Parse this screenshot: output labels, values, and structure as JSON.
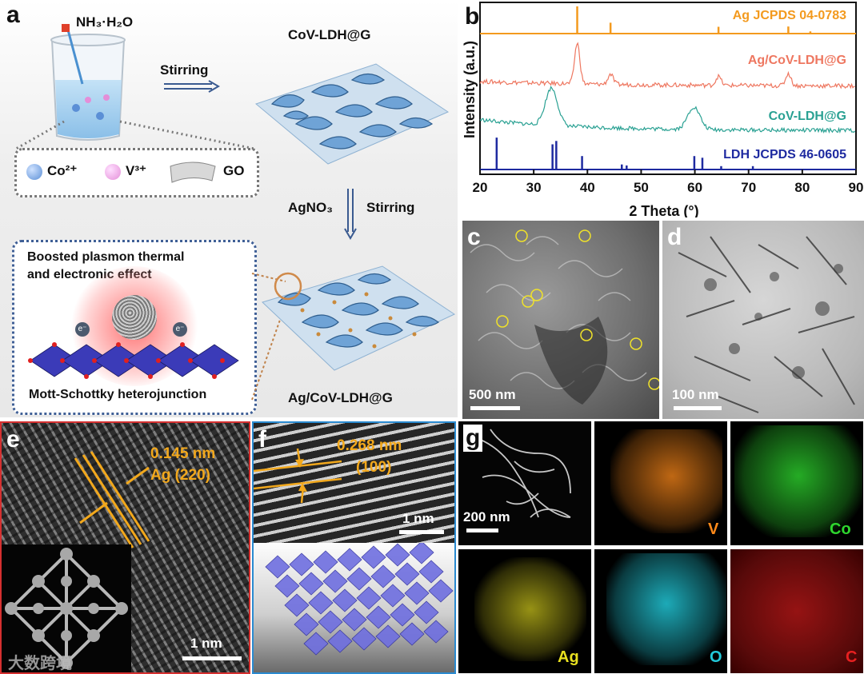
{
  "panel_a": {
    "label": "a",
    "reagent_top": "NH₃·H₂O",
    "product_top": "CoV-LDH@G",
    "step1": "Stirring",
    "reagent2": "AgNO₃",
    "step2": "Stirring",
    "legend": [
      {
        "name": "Co²⁺",
        "color": "#5b8fd6"
      },
      {
        "name": "V³⁺",
        "color": "#e48ed8"
      },
      {
        "name": "GO",
        "color": "#9a9a9a"
      }
    ],
    "inset_title_line1": "Boosted plasmon thermal",
    "inset_title_line2": "and electronic effect",
    "electron_label": "e⁻",
    "inset_footer": "Mott-Schottky heterojunction",
    "product_bottom": "Ag/CoV-LDH@G"
  },
  "panel_b": {
    "label": "b"
  },
  "chart_data": {
    "type": "line",
    "title": "",
    "xlabel": "2 Theta (°)",
    "ylabel": "Intensity (a.u.)",
    "xlim": [
      20,
      90
    ],
    "xticks": [
      20,
      30,
      40,
      50,
      60,
      70,
      80,
      90
    ],
    "yticks": [],
    "grid": false,
    "series": [
      {
        "name": "Ag JCPDS 04-0783",
        "color": "#f39a1e",
        "kind": "sticks",
        "peaks": [
          [
            38.1,
            100
          ],
          [
            44.3,
            40
          ],
          [
            64.4,
            25
          ],
          [
            77.4,
            26
          ],
          [
            81.5,
            8
          ]
        ]
      },
      {
        "name": "Ag/CoV-LDH@G",
        "color": "#ee7760",
        "kind": "pattern",
        "peaks": [
          [
            38.1,
            100
          ],
          [
            44.3,
            25
          ],
          [
            64.4,
            22
          ],
          [
            77.4,
            30
          ]
        ]
      },
      {
        "name": "CoV-LDH@G",
        "color": "#2aa193",
        "kind": "pattern",
        "peaks": [
          [
            33.3,
            100
          ],
          [
            59.8,
            60
          ]
        ]
      },
      {
        "name": "LDH JCPDS 46-0605",
        "color": "#1e2aa0",
        "kind": "sticks",
        "peaks": [
          [
            23.1,
            95
          ],
          [
            33.5,
            75
          ],
          [
            34.2,
            85
          ],
          [
            39.0,
            40
          ],
          [
            46.4,
            15
          ],
          [
            47.3,
            12
          ],
          [
            59.9,
            40
          ],
          [
            61.4,
            35
          ],
          [
            64.9,
            10
          ],
          [
            70.8,
            10
          ]
        ]
      }
    ]
  },
  "panel_c": {
    "label": "c",
    "scale": "500 nm"
  },
  "panel_d": {
    "label": "d",
    "scale": "100 nm"
  },
  "panel_e": {
    "label": "e",
    "spacing": "0.145 nm",
    "plane": "Ag (220)",
    "scale": "1 nm",
    "watermark": "大数跨境"
  },
  "panel_f": {
    "label": "f",
    "spacing": "0.268 nm",
    "plane": "(100)",
    "scale": "1 nm"
  },
  "panel_g": {
    "label": "g",
    "scale": "200 nm",
    "maps": [
      {
        "element": "V",
        "color": "#ff8a1a"
      },
      {
        "element": "Co",
        "color": "#2ed62e"
      },
      {
        "element": "Ag",
        "color": "#e8e020"
      },
      {
        "element": "O",
        "color": "#22c8d8"
      },
      {
        "element": "C",
        "color": "#e82020"
      }
    ]
  }
}
